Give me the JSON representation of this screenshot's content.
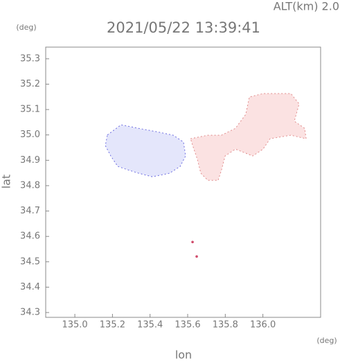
{
  "chart_data": {
    "type": "map",
    "title": "2021/05/22 13:39:41",
    "subtitle": "ALT(km) 2.0",
    "x_label": "lon",
    "y_label": "lat",
    "x_unit": "(deg)",
    "y_unit": "(deg)",
    "xlim": [
      134.845,
      136.307
    ],
    "ylim": [
      34.281,
      35.346
    ],
    "xticks": [
      {
        "value": 135.0,
        "label": "135.0"
      },
      {
        "value": 135.2,
        "label": "135.2"
      },
      {
        "value": 135.4,
        "label": "135.4"
      },
      {
        "value": 135.6,
        "label": "135.6"
      },
      {
        "value": 135.8,
        "label": "135.8"
      },
      {
        "value": 136.0,
        "label": "136.0"
      }
    ],
    "yticks": [
      {
        "value": 34.3,
        "label": "34.3"
      },
      {
        "value": 34.4,
        "label": "34.4"
      },
      {
        "value": 34.5,
        "label": "34.5"
      },
      {
        "value": 34.6,
        "label": "34.6"
      },
      {
        "value": 34.7,
        "label": "34.7"
      },
      {
        "value": 34.8,
        "label": "34.8"
      },
      {
        "value": 34.9,
        "label": "34.9"
      },
      {
        "value": 35.0,
        "label": "35.0"
      },
      {
        "value": 35.1,
        "label": "35.1"
      },
      {
        "value": 35.2,
        "label": "35.2"
      },
      {
        "value": 35.3,
        "label": "35.3"
      }
    ],
    "regions": [
      {
        "color": "#e4e6fb",
        "edge": "#6a6ae0",
        "lon": [
          135.173,
          135.246,
          135.339,
          135.431,
          135.523,
          135.578,
          135.589,
          135.56,
          135.504,
          135.412,
          135.339,
          135.283,
          135.228,
          135.191,
          135.162
        ],
        "lat": [
          35.0,
          35.04,
          35.026,
          35.013,
          34.999,
          34.972,
          34.917,
          34.876,
          34.849,
          34.835,
          34.849,
          34.862,
          34.876,
          34.917,
          34.958
        ]
      },
      {
        "color": "#fbe2e2",
        "edge": "#e08a8a",
        "lon": [
          135.615,
          135.707,
          135.78,
          135.854,
          135.909,
          135.928,
          136.001,
          136.149,
          136.193,
          136.167,
          136.222,
          136.23,
          136.149,
          136.038,
          136.001,
          135.946,
          135.854,
          135.799,
          135.78,
          135.762,
          135.707,
          135.67,
          135.652,
          135.633
        ],
        "lat": [
          34.985,
          34.999,
          34.999,
          35.026,
          35.081,
          35.149,
          35.163,
          35.163,
          35.122,
          35.054,
          35.026,
          34.985,
          34.999,
          34.985,
          34.944,
          34.917,
          34.944,
          34.917,
          34.862,
          34.821,
          34.821,
          34.849,
          34.903,
          34.944
        ]
      }
    ],
    "points": {
      "color": "#d04a6a",
      "lon": [
        135.626,
        135.648
      ],
      "lat": [
        34.578,
        34.521
      ]
    }
  }
}
